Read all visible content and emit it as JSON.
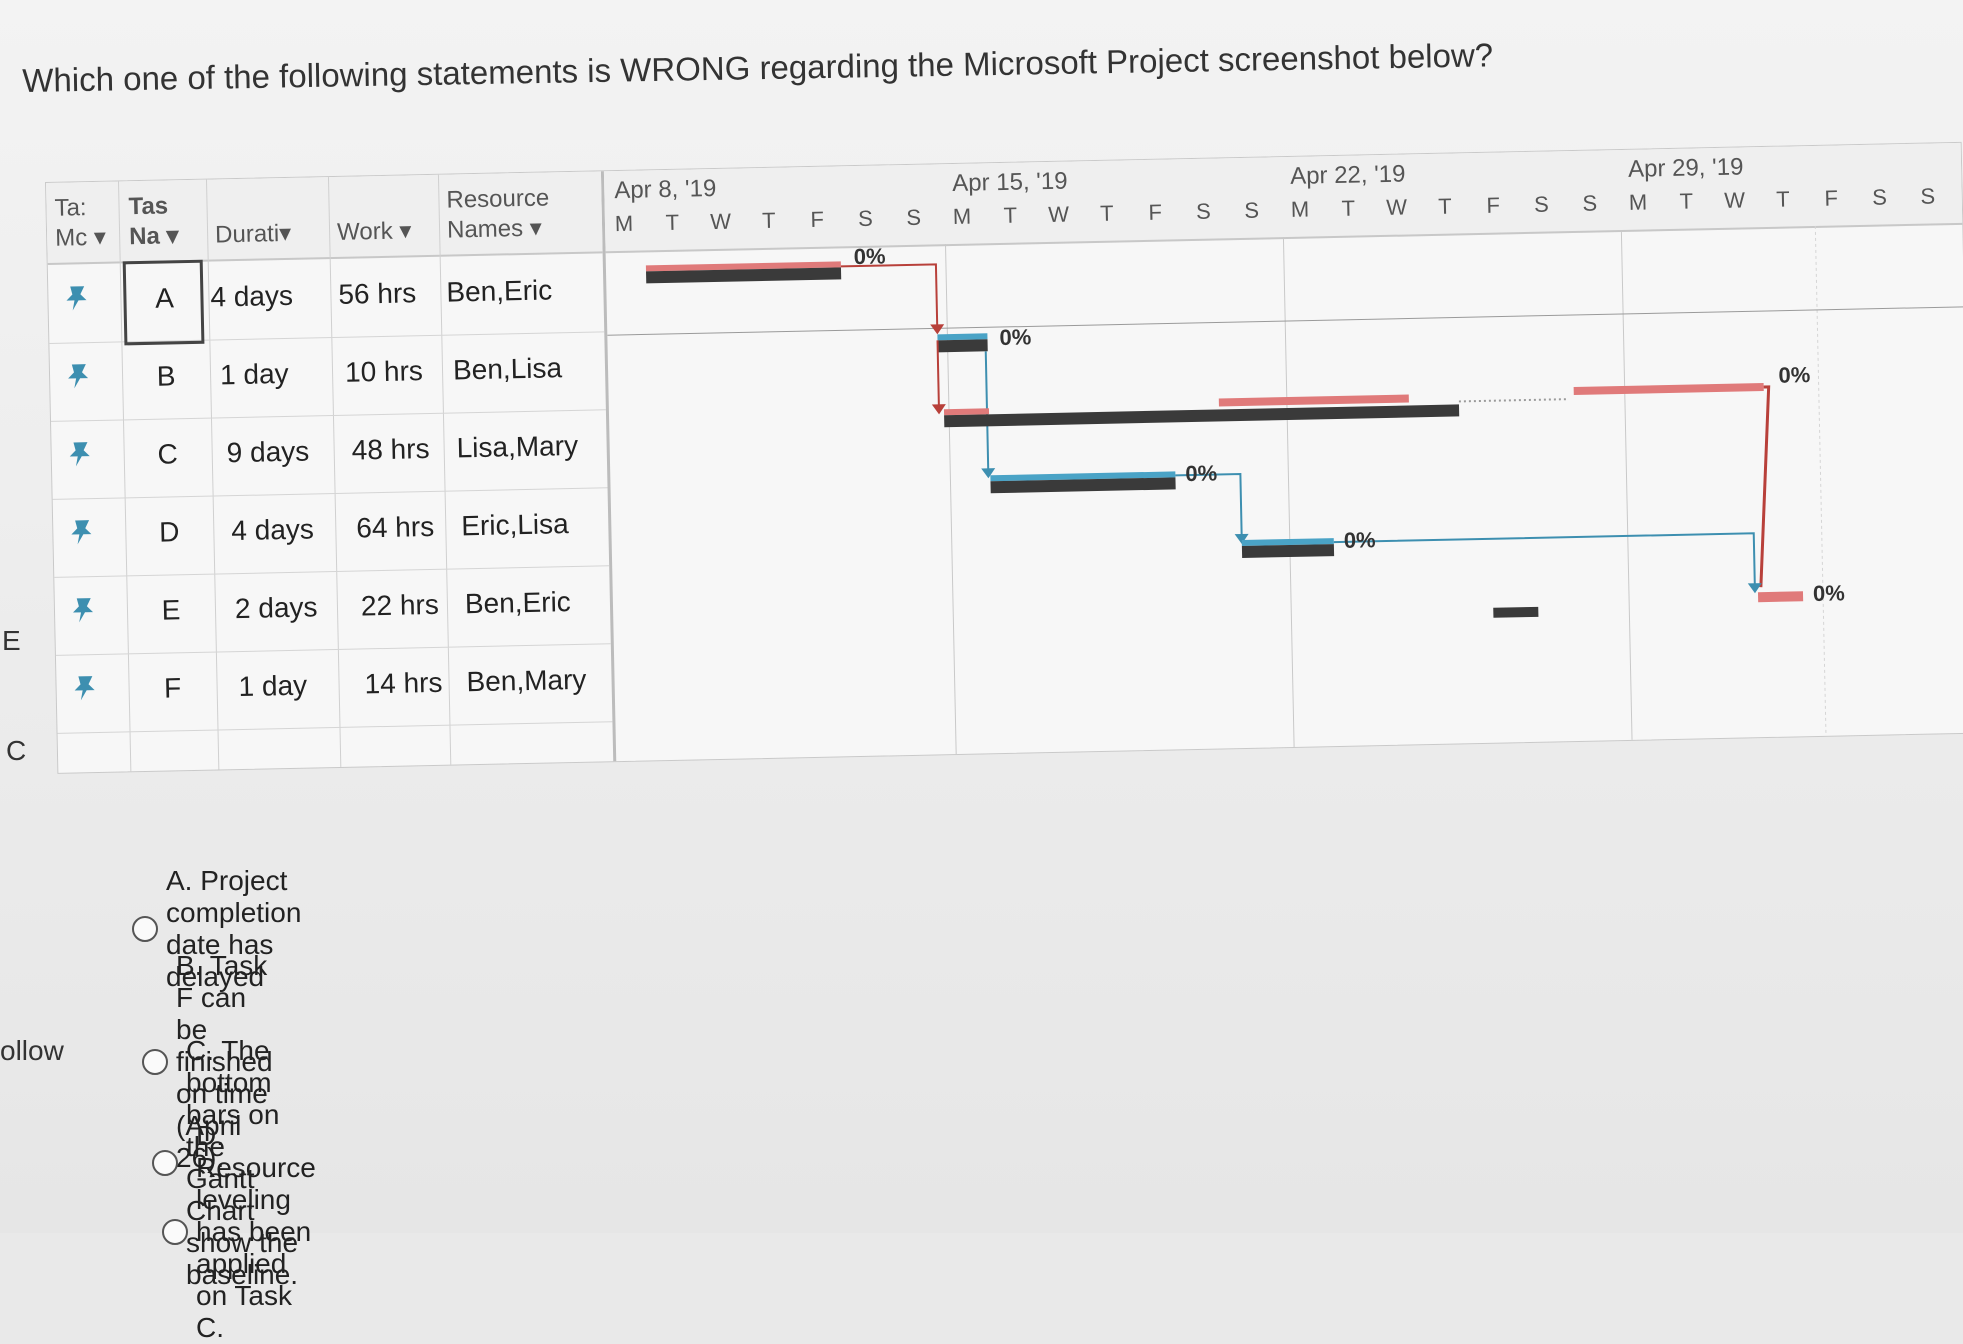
{
  "question": "Which one of the following statements is WRONG regarding the Microsoft Project screenshot below?",
  "edge_text": [
    "E",
    "C",
    "ollow"
  ],
  "table": {
    "headers": {
      "mode_1": "Ta:",
      "mode_2": "Mc ▾",
      "name_1": "Tas",
      "name_2": "Na ▾",
      "duration": "Durati▾",
      "work": "Work ▾",
      "resource_1": "Resource",
      "resource_2": "Names ▾"
    },
    "rows": [
      {
        "name": "A",
        "duration": "4 days",
        "work": "56 hrs",
        "resources": "Ben,Eric"
      },
      {
        "name": "B",
        "duration": "1 day",
        "work": "10 hrs",
        "resources": "Ben,Lisa"
      },
      {
        "name": "C",
        "duration": "9 days",
        "work": "48 hrs",
        "resources": "Lisa,Mary"
      },
      {
        "name": "D",
        "duration": "4 days",
        "work": "64 hrs",
        "resources": "Eric,Lisa"
      },
      {
        "name": "E",
        "duration": "2 days",
        "work": "22 hrs",
        "resources": "Ben,Eric"
      },
      {
        "name": "F",
        "duration": "1 day",
        "work": "14 hrs",
        "resources": "Ben,Mary"
      }
    ]
  },
  "timescale": {
    "weeks": [
      "Apr 8, '19",
      "Apr 15, '19",
      "Apr 22, '19",
      "Apr 29, '19"
    ],
    "days": [
      "M",
      "T",
      "W",
      "T",
      "F",
      "S",
      "S",
      "M",
      "T",
      "W",
      "T",
      "F",
      "S",
      "S",
      "M",
      "T",
      "W",
      "T",
      "F",
      "S",
      "S",
      "M",
      "T",
      "W",
      "T",
      "F",
      "S",
      "S"
    ]
  },
  "gantt": {
    "percent_labels": [
      "0%",
      "0%",
      "0%",
      "0%",
      "0%",
      "0%"
    ],
    "colors": {
      "actual": "#3a3a3a",
      "baseline": "#e07a7a",
      "link_red": "#b8403a",
      "link_blue": "#3d8fb0",
      "task_blue": "#4aa3c6"
    }
  },
  "options": [
    {
      "label": "A. Project completion date has delayed"
    },
    {
      "label": "B. Task F can be finished on time (April 26)."
    },
    {
      "label": "C. The bottom bars on the Gantt Chart show the baseline."
    },
    {
      "label": "D. Resource leveling has been applied on Task C."
    }
  ]
}
